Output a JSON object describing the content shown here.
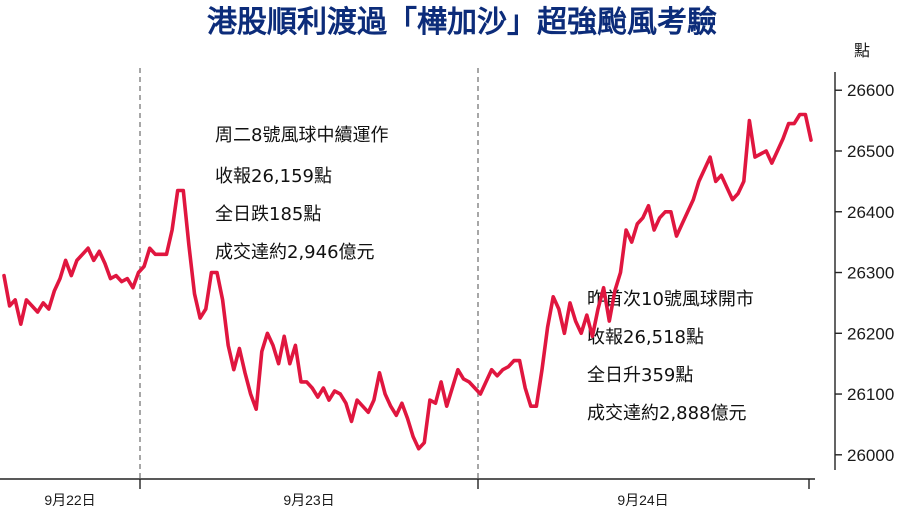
{
  "chart_data": {
    "type": "line",
    "title": "港股順利渡過「樺加沙」超強颱風考驗",
    "ylabel": "點",
    "ylim": [
      25975,
      26630
    ],
    "yticks": [
      26000,
      26100,
      26200,
      26300,
      26400,
      26500,
      26600
    ],
    "ytick_labels": [
      "26000",
      "26100",
      "26200",
      "26300",
      "26400",
      "26500",
      "26600"
    ],
    "xlabels": [
      "9月22日",
      "9月23日",
      "9月24日"
    ],
    "grid": false,
    "line_color": "#e0163f",
    "series": [
      {
        "values": [
          26295,
          26245,
          26255,
          26215,
          26255,
          26245,
          26235,
          26250,
          26240,
          26270,
          26290,
          26320,
          26295,
          26320,
          26330,
          26340,
          26320,
          26335,
          26315,
          26290,
          26295,
          26285,
          26290,
          26275,
          26300,
          26310,
          26340,
          26330,
          26330,
          26330,
          26370,
          26435,
          26435,
          26345,
          26265,
          26225,
          26240,
          26300,
          26300,
          26255,
          26180,
          26140,
          26175,
          26135,
          26100,
          26075,
          26170,
          26200,
          26180,
          26150,
          26195,
          26150,
          26180,
          26120,
          26120,
          26110,
          26095,
          26110,
          26090,
          26105,
          26100,
          26085,
          26055,
          26090,
          26080,
          26070,
          26090,
          26135,
          26100,
          26080,
          26065,
          26085,
          26060,
          26030,
          26010,
          26020,
          26090,
          26085,
          26120,
          26080,
          26110,
          26140,
          26125,
          26120,
          26110,
          26100,
          26120,
          26140,
          26130,
          26140,
          26145,
          26155,
          26155,
          26110,
          26080,
          26080,
          26140,
          26210,
          26260,
          26240,
          26200,
          26250,
          26220,
          26200,
          26230,
          26195,
          26240,
          26275,
          26220,
          26270,
          26300,
          26370,
          26350,
          26380,
          26390,
          26410,
          26370,
          26390,
          26400,
          26400,
          26360,
          26380,
          26400,
          26420,
          26450,
          26470,
          26490,
          26450,
          26460,
          26440,
          26420,
          26430,
          26450,
          26550,
          26490,
          26495,
          26500,
          26480,
          26500,
          26520,
          26545,
          26545,
          26560,
          26560,
          26518
        ]
      }
    ],
    "annotations": [
      {
        "lines": [
          "周二8號風球中續運作",
          "收報26,159點",
          "全日跌185點",
          "成交達約2,946億元"
        ]
      },
      {
        "lines": [
          "昨首次10號風球開市",
          "收報26,518點",
          "全日升359點",
          "成交達約2,888億元"
        ]
      }
    ]
  }
}
